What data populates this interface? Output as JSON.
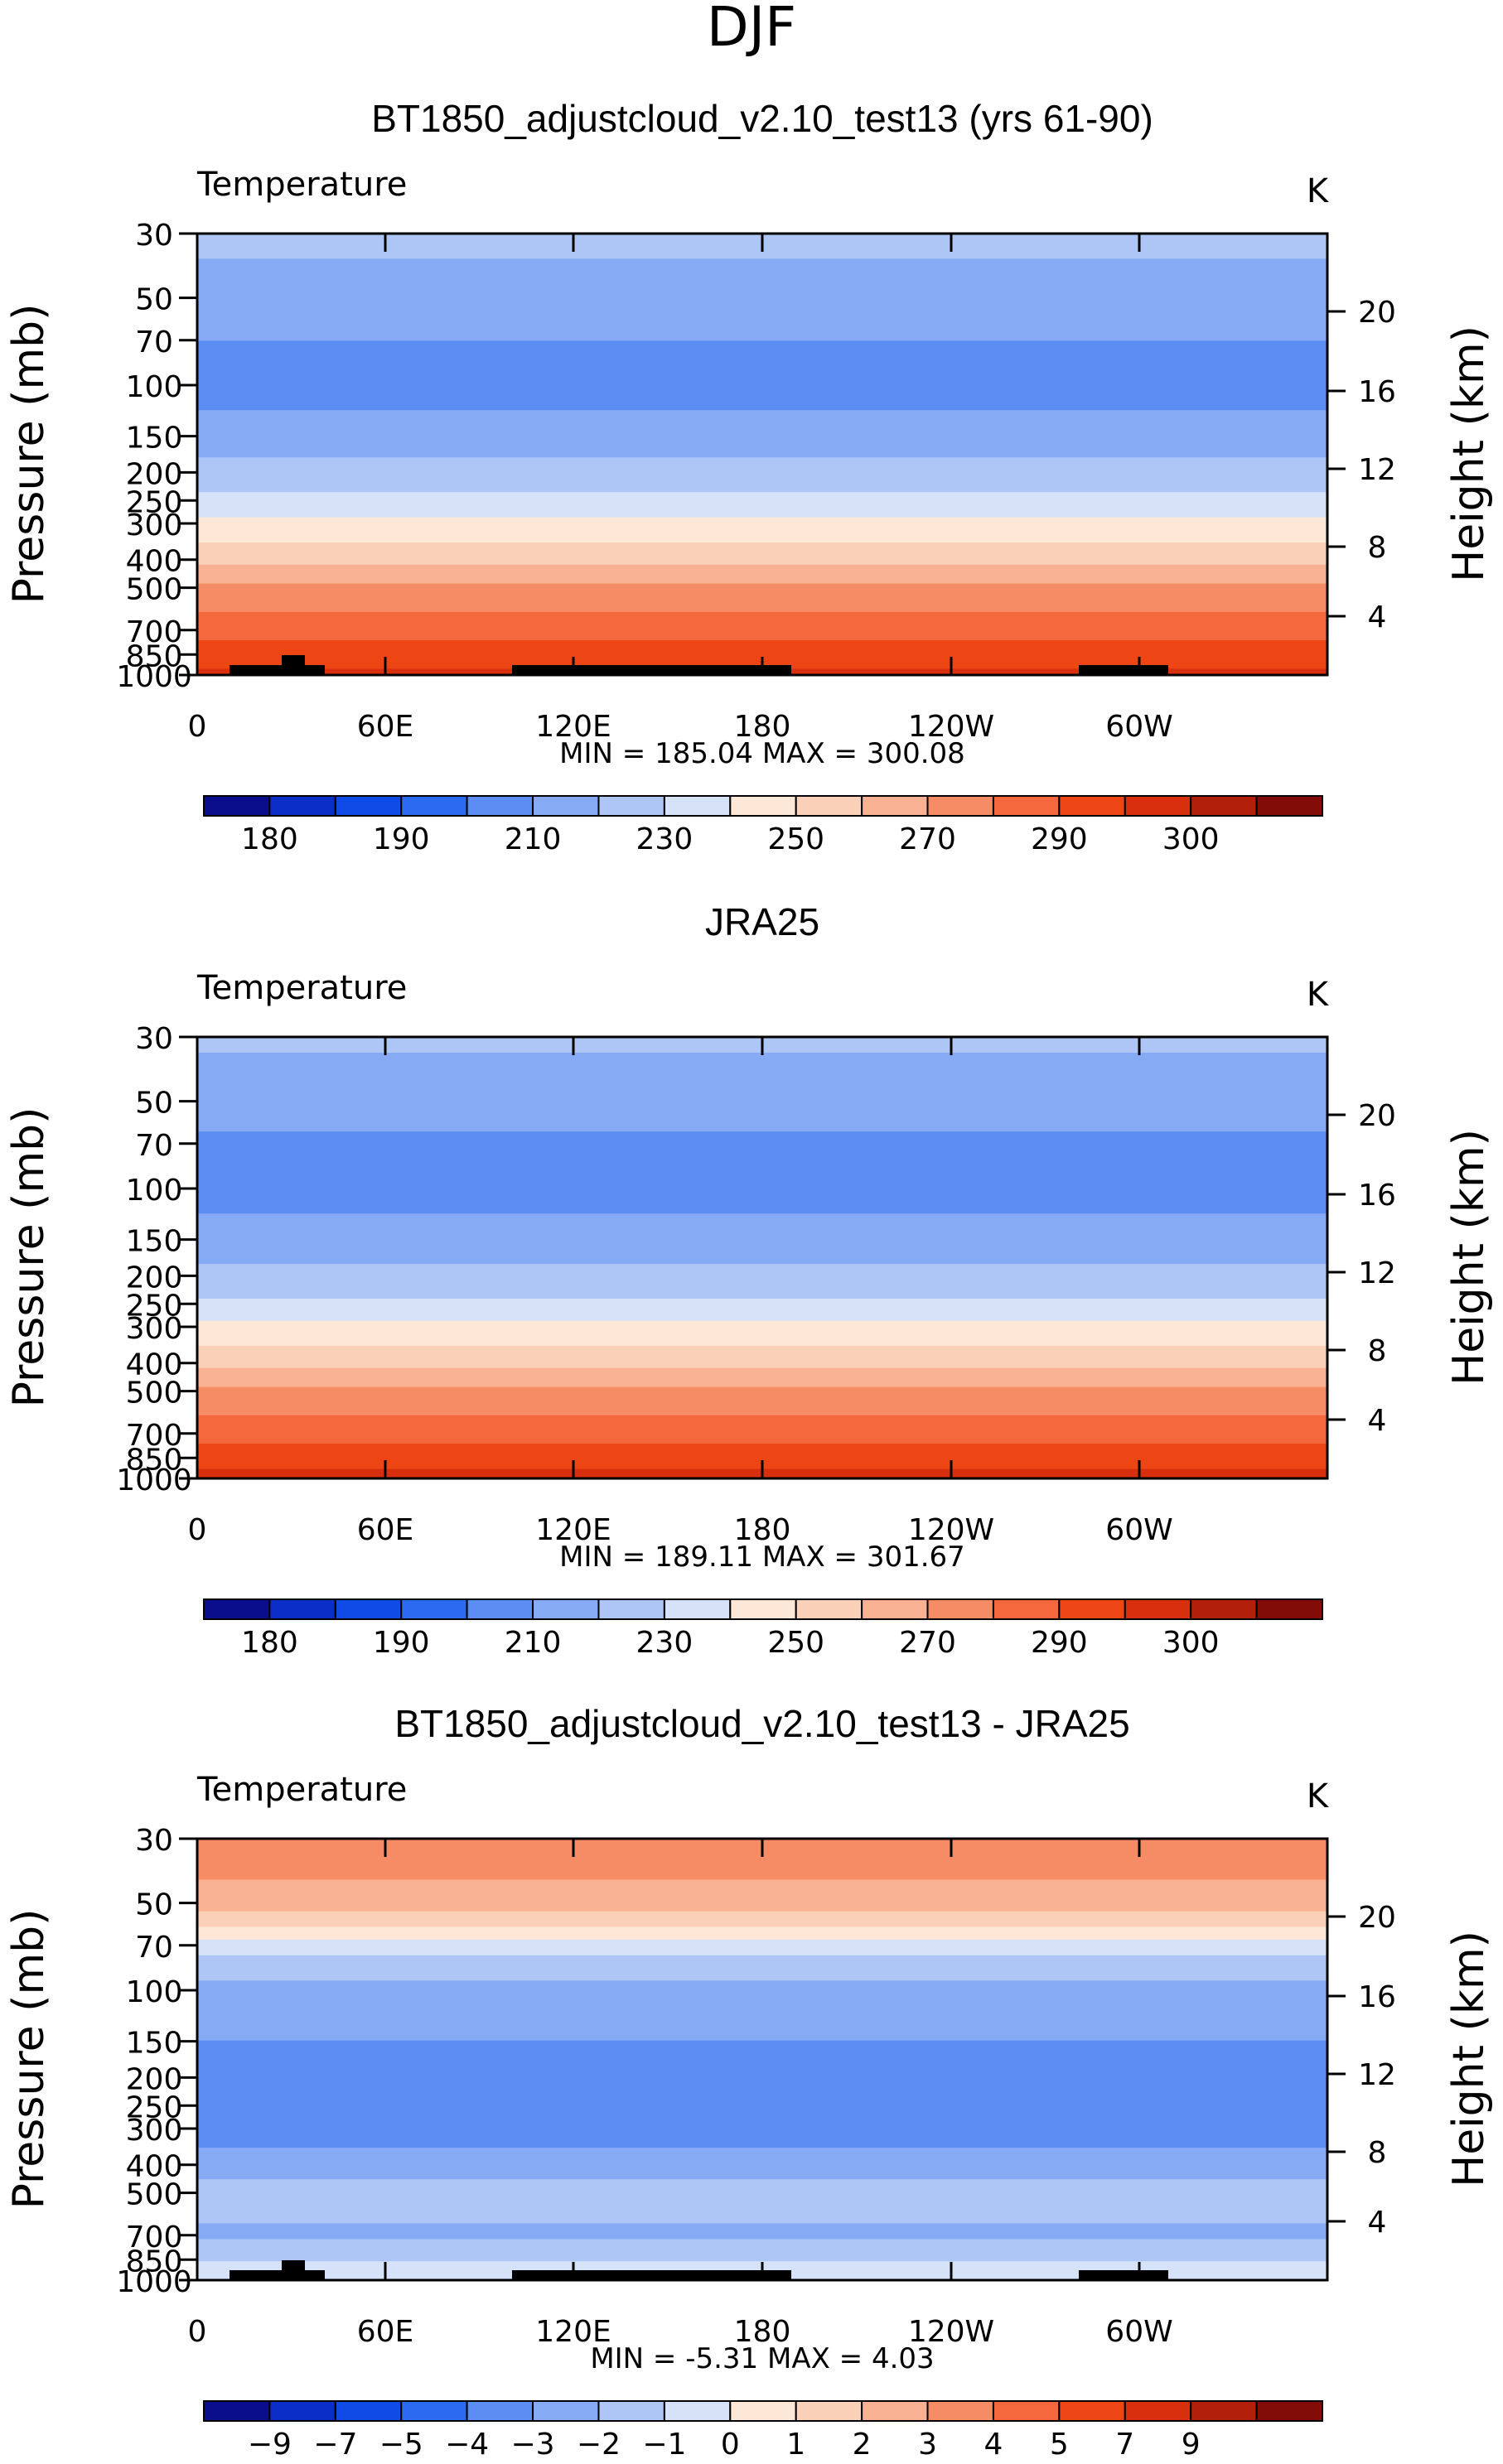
{
  "page_title": "DJF",
  "colormap": {
    "abs": [
      "#0a0e8c",
      "#0b2ec8",
      "#0f4be6",
      "#2a6bf0",
      "#5b8df2",
      "#86aaf4",
      "#aec6f6",
      "#d5e2f8",
      "#fde7d6",
      "#fbd0b8",
      "#f8b192",
      "#f68c66",
      "#f5683e",
      "#ee4515",
      "#d8300e",
      "#b2200b",
      "#820c07"
    ],
    "diff": [
      "#0a0e8c",
      "#0b2ec8",
      "#0f4be6",
      "#2a6bf0",
      "#5b8df2",
      "#86aaf4",
      "#aec6f6",
      "#d5e2f8",
      "#fde7d6",
      "#fbd0b8",
      "#f8b192",
      "#f68c66",
      "#f5683e",
      "#ee4515",
      "#d8300e",
      "#b2200b",
      "#820c07"
    ]
  },
  "chart_data": [
    {
      "type": "heatmap",
      "title": "BT1850_adjustcloud_v2.10_test13 (yrs 61-90)",
      "variable": "Temperature",
      "units": "K",
      "ylabel": "Pressure  (mb)",
      "y2label": "Height  (km)",
      "pressure_ticks": [
        30,
        50,
        70,
        100,
        150,
        200,
        250,
        300,
        400,
        500,
        700,
        850,
        1000
      ],
      "height_ticks": [
        20,
        16,
        12,
        8,
        4
      ],
      "x_ticks": [
        "0",
        "60E",
        "120E",
        "180",
        "120W",
        "60W"
      ],
      "stats_text": "MIN =  185.04   MAX =  300.08",
      "colorbar_labels": [
        "180",
        "190",
        "210",
        "230",
        "250",
        "270",
        "290",
        "300"
      ],
      "levels": [
        175,
        180,
        185,
        190,
        200,
        210,
        220,
        230,
        240,
        250,
        260,
        270,
        280,
        290,
        295,
        300
      ],
      "profile": [
        [
          30,
          214
        ],
        [
          50,
          204
        ],
        [
          70,
          200
        ],
        [
          100,
          196
        ],
        [
          150,
          204
        ],
        [
          200,
          214
        ],
        [
          250,
          222
        ],
        [
          300,
          232
        ],
        [
          400,
          248
        ],
        [
          500,
          262
        ],
        [
          700,
          276
        ],
        [
          850,
          286
        ],
        [
          1000,
          292
        ]
      ],
      "min": 185.04,
      "max": 300.08,
      "has_topography": true
    },
    {
      "type": "heatmap",
      "title": "JRA25",
      "variable": "Temperature",
      "units": "K",
      "ylabel": "Pressure  (mb)",
      "y2label": "Height  (km)",
      "pressure_ticks": [
        30,
        50,
        70,
        100,
        150,
        200,
        250,
        300,
        400,
        500,
        700,
        850,
        1000
      ],
      "height_ticks": [
        20,
        16,
        12,
        8,
        4
      ],
      "x_ticks": [
        "0",
        "60E",
        "120E",
        "180",
        "120W",
        "60W"
      ],
      "stats_text": "MIN =  189.11   MAX =  301.67",
      "colorbar_labels": [
        "180",
        "190",
        "210",
        "230",
        "250",
        "270",
        "290",
        "300"
      ],
      "levels": [
        175,
        180,
        185,
        190,
        200,
        210,
        220,
        230,
        240,
        250,
        260,
        270,
        280,
        290,
        295,
        300
      ],
      "profile": [
        [
          30,
          212
        ],
        [
          50,
          203
        ],
        [
          70,
          199
        ],
        [
          100,
          197
        ],
        [
          150,
          203
        ],
        [
          200,
          213
        ],
        [
          250,
          222
        ],
        [
          300,
          232
        ],
        [
          400,
          248
        ],
        [
          500,
          262
        ],
        [
          700,
          276
        ],
        [
          850,
          287
        ],
        [
          1000,
          293
        ]
      ],
      "min": 189.11,
      "max": 301.67,
      "has_topography": false
    },
    {
      "type": "heatmap",
      "title": "BT1850_adjustcloud_v2.10_test13 - JRA25",
      "variable": "Temperature",
      "units": "K",
      "ylabel": "Pressure  (mb)",
      "y2label": "Height  (km)",
      "pressure_ticks": [
        30,
        50,
        70,
        100,
        150,
        200,
        250,
        300,
        400,
        500,
        700,
        850,
        1000
      ],
      "height_ticks": [
        20,
        16,
        12,
        8,
        4
      ],
      "x_ticks": [
        "0",
        "60E",
        "120E",
        "180",
        "120W",
        "60W"
      ],
      "stats_text": "MIN =     -5.31   MAX =      4.03",
      "colorbar_labels": [
        "-9",
        "-7",
        "-5",
        "-4",
        "-3",
        "-2",
        "-1",
        "0",
        "1",
        "2",
        "3",
        "4",
        "5",
        "7",
        "9"
      ],
      "levels": [
        -9,
        -7,
        -5,
        -4,
        -3,
        -2,
        -1,
        0,
        1,
        2,
        3,
        4,
        5,
        7,
        9,
        11
      ],
      "profile": [
        [
          30,
          3.8
        ],
        [
          50,
          2.5
        ],
        [
          60,
          1.2
        ],
        [
          70,
          -0.5
        ],
        [
          100,
          -2.5
        ],
        [
          150,
          -3.0
        ],
        [
          200,
          -3.2
        ],
        [
          300,
          -3.5
        ],
        [
          400,
          -2.5
        ],
        [
          500,
          -1.5
        ],
        [
          700,
          -2.2
        ],
        [
          850,
          -1.0
        ],
        [
          1000,
          -0.8
        ]
      ],
      "min": -5.31,
      "max": 4.03,
      "has_topography": true
    }
  ]
}
